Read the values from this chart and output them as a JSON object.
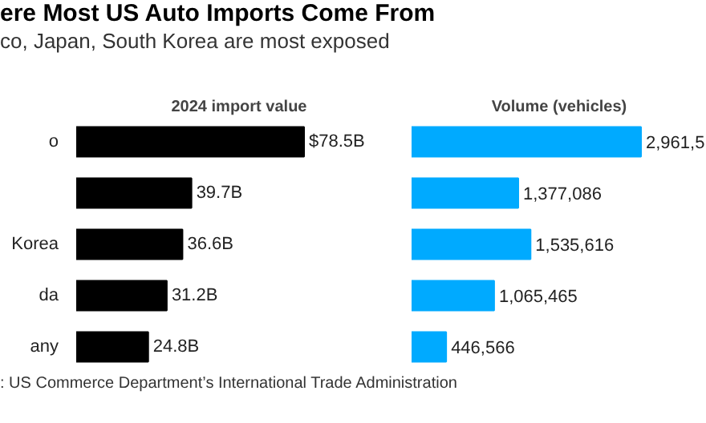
{
  "chart_data": [
    {
      "type": "bar",
      "orientation": "horizontal",
      "title": "ere Most US Auto Imports Come From",
      "subtitle": "co, Japan, South Korea are most exposed",
      "xlabel": "2024 import value",
      "categories": [
        "o",
        null,
        "Korea",
        "da",
        "any"
      ],
      "values": [
        78.5,
        39.7,
        36.6,
        31.2,
        24.8
      ],
      "value_labels": [
        "$78.5B",
        "39.7B",
        "36.6B",
        "31.2B",
        "24.8B"
      ],
      "color": "#000000",
      "tick_labels": "y",
      "grid": false,
      "annotations": [
        ": US Commerce Department’s International Trade Administration"
      ]
    },
    {
      "type": "bar",
      "orientation": "horizontal",
      "xlabel": "Volume (vehicles)",
      "categories": [
        null,
        null,
        null,
        null,
        null
      ],
      "values": [
        2961500,
        1377086,
        1535616,
        1065465,
        446566
      ],
      "value_labels": [
        "2,961,5",
        "1,377,086",
        "1,535,616",
        "1,065,465",
        "446,566"
      ],
      "color": "#00aaff",
      "tick_labels": false,
      "grid": false
    }
  ]
}
